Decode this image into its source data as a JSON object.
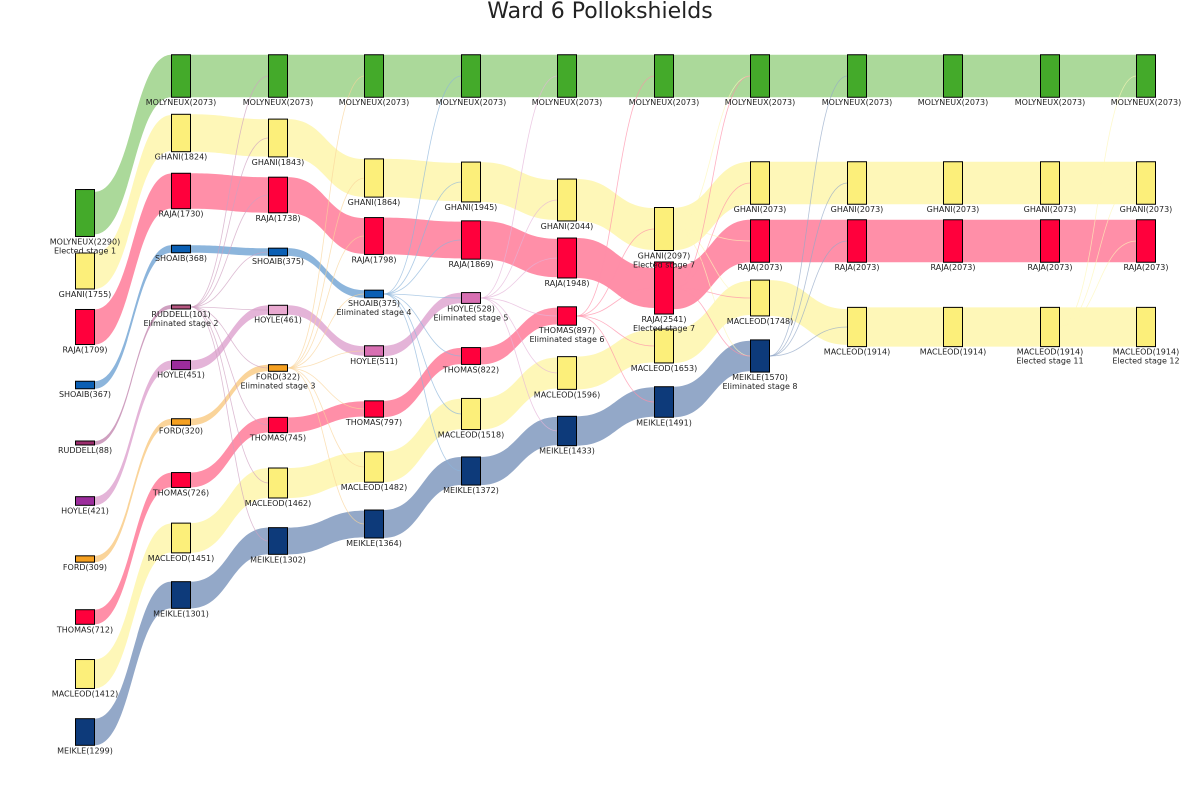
{
  "chart_data": {
    "type": "sankey",
    "title": "Ward 6 Pollokshields",
    "candidates": {
      "MOLYNEUX": {
        "color": "#44aa2a",
        "flow_color": "#abd99a"
      },
      "GHANI": {
        "color": "#fcef7a",
        "flow_color": "#fef7b8"
      },
      "RAJA": {
        "color": "#ff003c",
        "flow_color": "#ff8fa8"
      },
      "SHOAIB": {
        "color": "#0a5fb4",
        "flow_color": "#8cb5dc"
      },
      "RUDDELL": {
        "color": "#9b2c6d",
        "flow_color": "#cfa0c0"
      },
      "HOYLE": {
        "color": "#9b2c9b",
        "flow_color": "#e4b4d8"
      },
      "FORD": {
        "color": "#f5a020",
        "flow_color": "#fad49a"
      },
      "THOMAS": {
        "color": "#ff003c",
        "flow_color": "#ff8fa8"
      },
      "MACLEOD": {
        "color": "#fcef7a",
        "flow_color": "#fef7b8"
      },
      "MEIKLE": {
        "color": "#0d3a7a",
        "flow_color": "#93a8c8"
      }
    },
    "stages": [
      {
        "stage": 1,
        "nodes": [
          {
            "name": "MOLYNEUX",
            "value": 2290,
            "note": "Elected stage 1"
          },
          {
            "name": "GHANI",
            "value": 1755
          },
          {
            "name": "RAJA",
            "value": 1709
          },
          {
            "name": "SHOAIB",
            "value": 367
          },
          {
            "name": "RUDDELL",
            "value": 88
          },
          {
            "name": "HOYLE",
            "value": 421
          },
          {
            "name": "FORD",
            "value": 309
          },
          {
            "name": "THOMAS",
            "value": 712
          },
          {
            "name": "MACLEOD",
            "value": 1412
          },
          {
            "name": "MEIKLE",
            "value": 1299
          }
        ]
      },
      {
        "stage": 2,
        "nodes": [
          {
            "name": "MOLYNEUX",
            "value": 2073
          },
          {
            "name": "GHANI",
            "value": 1824
          },
          {
            "name": "RAJA",
            "value": 1730
          },
          {
            "name": "SHOAIB",
            "value": 368
          },
          {
            "name": "RUDDELL",
            "value": 101,
            "note": "Eliminated stage 2"
          },
          {
            "name": "HOYLE",
            "value": 451
          },
          {
            "name": "FORD",
            "value": 320
          },
          {
            "name": "THOMAS",
            "value": 726
          },
          {
            "name": "MACLEOD",
            "value": 1451
          },
          {
            "name": "MEIKLE",
            "value": 1301
          }
        ]
      },
      {
        "stage": 3,
        "nodes": [
          {
            "name": "MOLYNEUX",
            "value": 2073
          },
          {
            "name": "GHANI",
            "value": 1843
          },
          {
            "name": "RAJA",
            "value": 1738
          },
          {
            "name": "SHOAIB",
            "value": 375
          },
          {
            "name": "HOYLE",
            "value": 461
          },
          {
            "name": "FORD",
            "value": 322,
            "note": "Eliminated stage 3"
          },
          {
            "name": "THOMAS",
            "value": 745
          },
          {
            "name": "MACLEOD",
            "value": 1462
          },
          {
            "name": "MEIKLE",
            "value": 1302
          }
        ]
      },
      {
        "stage": 4,
        "nodes": [
          {
            "name": "MOLYNEUX",
            "value": 2073
          },
          {
            "name": "GHANI",
            "value": 1864
          },
          {
            "name": "RAJA",
            "value": 1798
          },
          {
            "name": "SHOAIB",
            "value": 375,
            "note": "Eliminated stage 4"
          },
          {
            "name": "HOYLE",
            "value": 511
          },
          {
            "name": "THOMAS",
            "value": 797
          },
          {
            "name": "MACLEOD",
            "value": 1482
          },
          {
            "name": "MEIKLE",
            "value": 1364
          }
        ]
      },
      {
        "stage": 5,
        "nodes": [
          {
            "name": "MOLYNEUX",
            "value": 2073
          },
          {
            "name": "GHANI",
            "value": 1945
          },
          {
            "name": "RAJA",
            "value": 1869
          },
          {
            "name": "HOYLE",
            "value": 528,
            "note": "Eliminated stage 5"
          },
          {
            "name": "THOMAS",
            "value": 822
          },
          {
            "name": "MACLEOD",
            "value": 1518
          },
          {
            "name": "MEIKLE",
            "value": 1372
          }
        ]
      },
      {
        "stage": 6,
        "nodes": [
          {
            "name": "MOLYNEUX",
            "value": 2073
          },
          {
            "name": "GHANI",
            "value": 2044
          },
          {
            "name": "RAJA",
            "value": 1948
          },
          {
            "name": "THOMAS",
            "value": 897,
            "note": "Eliminated stage 6"
          },
          {
            "name": "MACLEOD",
            "value": 1596
          },
          {
            "name": "MEIKLE",
            "value": 1433
          }
        ]
      },
      {
        "stage": 7,
        "nodes": [
          {
            "name": "MOLYNEUX",
            "value": 2073
          },
          {
            "name": "GHANI",
            "value": 2097,
            "note": "Elected stage 7"
          },
          {
            "name": "RAJA",
            "value": 2541,
            "note": "Elected stage 7"
          },
          {
            "name": "MACLEOD",
            "value": 1653
          },
          {
            "name": "MEIKLE",
            "value": 1491
          }
        ]
      },
      {
        "stage": 8,
        "nodes": [
          {
            "name": "MOLYNEUX",
            "value": 2073
          },
          {
            "name": "GHANI",
            "value": 2073
          },
          {
            "name": "RAJA",
            "value": 2073
          },
          {
            "name": "MACLEOD",
            "value": 1748
          },
          {
            "name": "MEIKLE",
            "value": 1570,
            "note": "Eliminated stage 8"
          }
        ]
      },
      {
        "stage": 9,
        "nodes": [
          {
            "name": "MOLYNEUX",
            "value": 2073
          },
          {
            "name": "GHANI",
            "value": 2073
          },
          {
            "name": "RAJA",
            "value": 2073
          },
          {
            "name": "MACLEOD",
            "value": 1914
          }
        ]
      },
      {
        "stage": 10,
        "nodes": [
          {
            "name": "MOLYNEUX",
            "value": 2073
          },
          {
            "name": "GHANI",
            "value": 2073
          },
          {
            "name": "RAJA",
            "value": 2073
          },
          {
            "name": "MACLEOD",
            "value": 1914
          }
        ]
      },
      {
        "stage": 11,
        "nodes": [
          {
            "name": "MOLYNEUX",
            "value": 2073
          },
          {
            "name": "GHANI",
            "value": 2073
          },
          {
            "name": "RAJA",
            "value": 2073
          },
          {
            "name": "MACLEOD",
            "value": 1914,
            "note": "Elected stage 11"
          }
        ]
      },
      {
        "stage": 12,
        "nodes": [
          {
            "name": "MOLYNEUX",
            "value": 2073
          },
          {
            "name": "GHANI",
            "value": 2073
          },
          {
            "name": "RAJA",
            "value": 2073
          },
          {
            "name": "MACLEOD",
            "value": 1914,
            "note": "Elected stage 12"
          }
        ]
      }
    ]
  }
}
